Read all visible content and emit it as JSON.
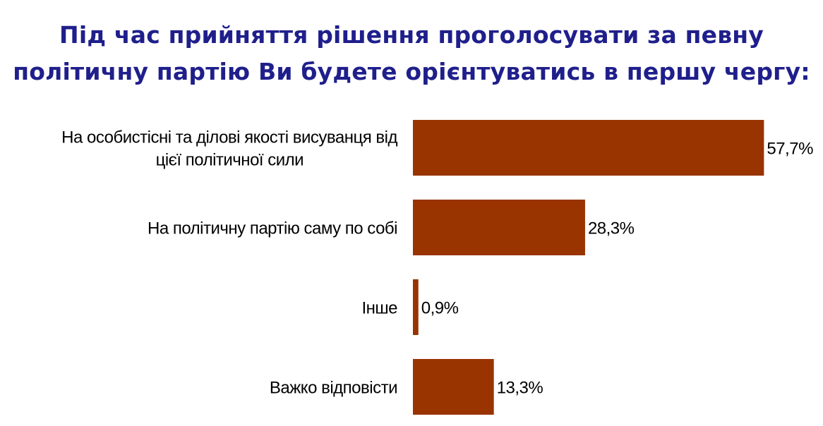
{
  "chart_data": {
    "type": "bar",
    "orientation": "horizontal",
    "title_lines": [
      "Під час прийняття рішення проголосувати за певну",
      "політичну партію Ви будете орієнтуватись в першу чергу:"
    ],
    "categories": [
      [
        "На особистісні та ділові якості висуванця від",
        "цієї політичної сили"
      ],
      [
        "На політичну партію саму по собі"
      ],
      [
        "Інше"
      ],
      [
        "Важко відповісти"
      ]
    ],
    "values": [
      57.7,
      28.3,
      0.9,
      13.3
    ],
    "value_labels": [
      "57,7%",
      "28,3%",
      "0,9%",
      "13,3%"
    ],
    "unit": "%",
    "bar_color": "#993300",
    "title_color": "#1f1f8c",
    "grid": false,
    "legend": "none"
  }
}
